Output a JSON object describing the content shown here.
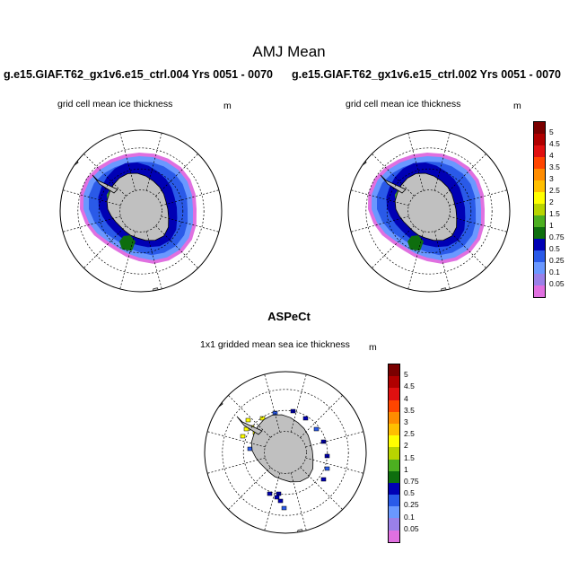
{
  "figure": {
    "title": "AMJ Mean",
    "left_run": "g.e15.GIAF.T62_gx1v6.e15_ctrl.004  Yrs 0051 - 0070",
    "right_run": "g.e15.GIAF.T62_gx1v6.e15_ctrl.002  Yrs 0051 - 0070"
  },
  "panels": [
    {
      "label": "grid cell mean ice thickness",
      "units": "m"
    },
    {
      "label": "grid cell mean ice thickness",
      "units": "m"
    }
  ],
  "obs_panel": {
    "title": "ASPeCt",
    "label": "1x1 gridded mean sea ice thickness",
    "units": "m"
  },
  "colorbar": {
    "labels": [
      "5",
      "4.5",
      "4",
      "3.5",
      "3",
      "2.5",
      "2",
      "1.5",
      "1",
      "0.75",
      "0.5",
      "0.25",
      "0.1",
      "0.05"
    ],
    "colors": [
      "#7a0000",
      "#b00000",
      "#e01010",
      "#ff4500",
      "#ff8c00",
      "#ffbf00",
      "#ffff00",
      "#b8d400",
      "#4caf20",
      "#0e6e0e",
      "#0000b4",
      "#2a5ae8",
      "#6a98ff",
      "#9a80e8",
      "#e070e0"
    ]
  },
  "colors": {
    "land": "#c0c0c0",
    "grid": "#000000"
  }
}
